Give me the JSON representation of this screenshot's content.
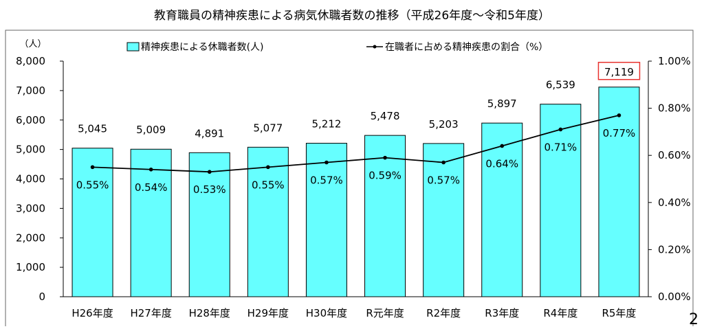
{
  "page_number": "2",
  "chart_data": {
    "type": "bar",
    "title": "教育職員の精神疾患による病気休職者数の推移（平成26年度～令和5年度）",
    "categories": [
      "H26年度",
      "H27年度",
      "H28年度",
      "H29年度",
      "H30年度",
      "R元年度",
      "R2年度",
      "R3年度",
      "R4年度",
      "R5年度"
    ],
    "left_axis": {
      "unit_label": "（人）",
      "ylim": [
        0,
        8000
      ],
      "ticks": [
        "0",
        "1,000",
        "2,000",
        "3,000",
        "4,000",
        "5,000",
        "6,000",
        "7,000",
        "8,000"
      ]
    },
    "right_axis": {
      "ylim": [
        0,
        1.0
      ],
      "ticks": [
        "0.00%",
        "0.20%",
        "0.40%",
        "0.60%",
        "0.80%",
        "1.00%"
      ]
    },
    "series": [
      {
        "name": "精神疾患による休職者数(人)",
        "type": "bar",
        "axis": "left",
        "color": "#66FFFF",
        "values": [
          5045,
          5009,
          4891,
          5077,
          5212,
          5478,
          5203,
          5897,
          6539,
          7119
        ],
        "labels": [
          "5,045",
          "5,009",
          "4,891",
          "5,077",
          "5,212",
          "5,478",
          "5,203",
          "5,897",
          "6,539",
          "7,119"
        ]
      },
      {
        "name": "在職者に占める精神疾患の割合（%）",
        "type": "line",
        "axis": "right",
        "color": "#000000",
        "values": [
          0.55,
          0.54,
          0.53,
          0.55,
          0.57,
          0.59,
          0.57,
          0.64,
          0.71,
          0.77
        ],
        "labels": [
          "0.55%",
          "0.54%",
          "0.53%",
          "0.55%",
          "0.57%",
          "0.59%",
          "0.57%",
          "0.64%",
          "0.71%",
          "0.77%"
        ]
      }
    ],
    "highlight": {
      "index": 9,
      "color": "#E8322E"
    },
    "legend_position": "top",
    "grid": false
  }
}
